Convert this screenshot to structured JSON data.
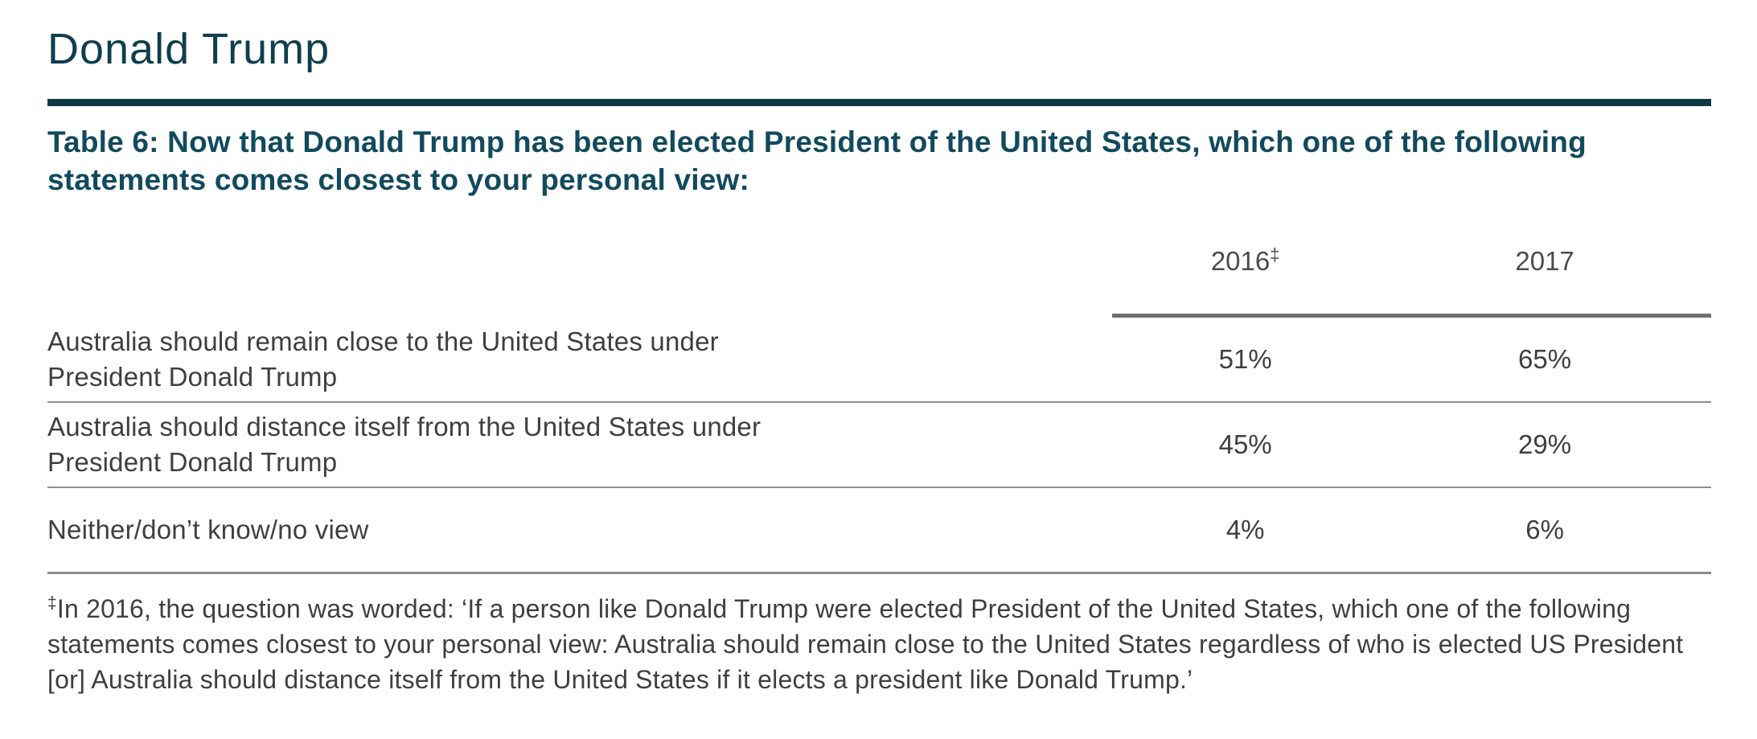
{
  "page": {
    "title": "Donald Trump",
    "accent_color": "#0f3e4e",
    "rule_color": "#0d3947"
  },
  "table": {
    "caption": "Table 6: Now that Donald Trump has been elected President of the United States, which one of the following statements comes closest to your personal view:",
    "columns": {
      "year1": "2016",
      "year1_marker": "‡",
      "year2": "2017"
    },
    "rows": [
      {
        "label_line1": "Australia should remain close to the United States under",
        "label_line2": "President Donald Trump",
        "y2016": "51%",
        "y2017": "65%"
      },
      {
        "label_line1": "Australia should distance itself from the United States under",
        "label_line2": "President Donald Trump",
        "y2016": "45%",
        "y2017": "29%"
      },
      {
        "label_line1": "Neither/don’t know/no view",
        "label_line2": "",
        "y2016": "4%",
        "y2017": "6%"
      }
    ],
    "footnote_marker": "‡",
    "footnote_text": "In 2016, the question was worded: ‘If a person like Donald Trump were elected President of the United States, which one of the following statements comes closest to your personal view: Australia should remain close to the United States regardless of who is elected US President [or] Australia should distance itself from the United States if it elects a president like Donald Trump.’"
  }
}
